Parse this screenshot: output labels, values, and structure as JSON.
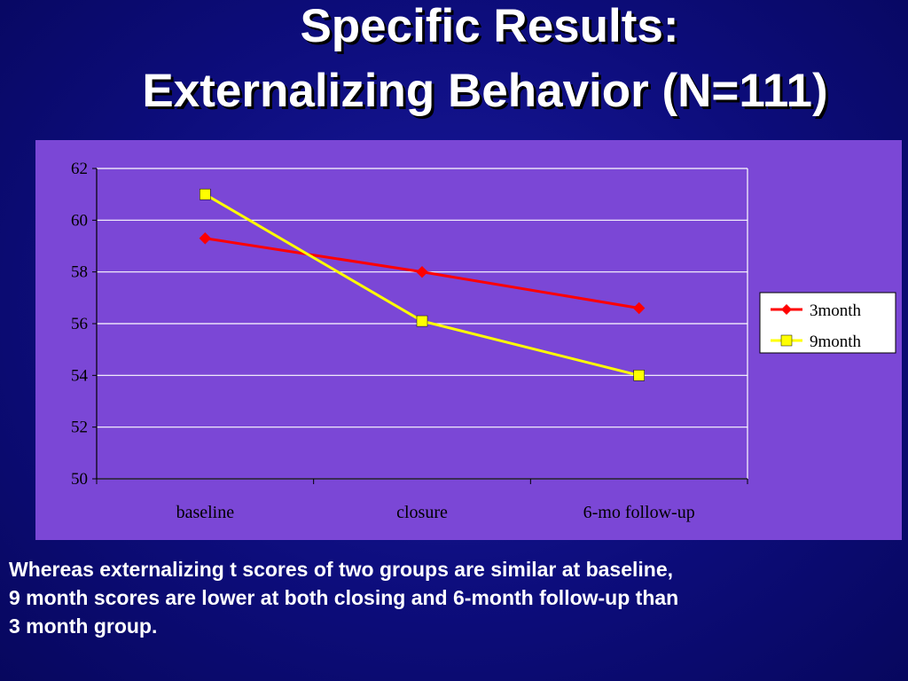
{
  "slide": {
    "title_line1": "Specific Results:",
    "title_line2": "Externalizing Behavior (N=111)",
    "caption_line1": "Whereas externalizing t scores of two groups are similar at baseline,",
    "caption_line2": "9 month scores are lower at both closing and 6-month follow-up than",
    "caption_line3": "3 month group."
  },
  "colors": {
    "background": "#0d0d7c",
    "plot_area": "#7b47d6",
    "series_3month": "#ff0000",
    "series_9month": "#ffff00",
    "gridline": "#ffffff"
  },
  "chart_data": {
    "type": "line",
    "title": "",
    "xlabel": "",
    "ylabel": "",
    "categories": [
      "baseline",
      "closure",
      "6-mo follow-up"
    ],
    "y_ticks": [
      "62",
      "60",
      "58",
      "56",
      "54",
      "52",
      "50"
    ],
    "ylim": [
      50,
      62
    ],
    "grid": true,
    "legend_position": "right",
    "series": [
      {
        "name": "3month",
        "values": [
          59.3,
          58.0,
          56.6
        ],
        "marker": "diamond",
        "color": "#ff0000"
      },
      {
        "name": "9month",
        "values": [
          61.0,
          56.1,
          54.0
        ],
        "marker": "square",
        "color": "#ffff00"
      }
    ]
  }
}
